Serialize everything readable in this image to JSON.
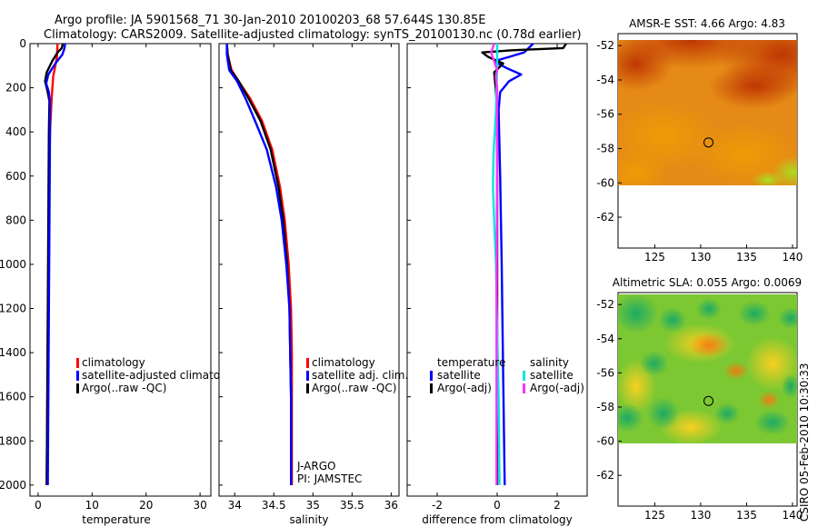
{
  "figure": {
    "title_line1": "Argo profile: JA 5901568_71 30-Jan-2010 20100203_68 57.644S 130.85E",
    "title_line2": "Climatology: CARS2009. Satellite-adjusted climatology: synTS_20100130.nc (0.78d earlier)",
    "side_label": "CSIRO 05-Feb-2010 10:30:33"
  },
  "colors": {
    "climatology": "#ff0000",
    "satellite": "#0000ff",
    "argo": "#000000",
    "satellite_diff": "#00e5e5",
    "argo_diff": "#ff33ff"
  },
  "chart_data": [
    {
      "id": "temperature",
      "type": "line",
      "xlabel": "temperature",
      "ylabel": "",
      "xlim": [
        -1.5,
        32
      ],
      "ylim": [
        2050,
        0
      ],
      "xticks": [
        "0",
        "10",
        "20",
        "30"
      ],
      "xtick_values": [
        0,
        10,
        20,
        30
      ],
      "yticks": [
        "0",
        "200",
        "400",
        "600",
        "800",
        "1000",
        "1200",
        "1400",
        "1600",
        "1800",
        "2000"
      ],
      "ytick_values": [
        0,
        200,
        400,
        600,
        800,
        1000,
        1200,
        1400,
        1600,
        1800,
        2000
      ],
      "legend": [
        "climatology",
        "satellite-adjusted climatolo",
        "Argo(..raw -QC)"
      ],
      "series": [
        {
          "name": "climatology",
          "color": "#ff0000",
          "x": [
            3.6,
            3.5,
            3.2,
            2.8,
            2.5,
            2.2,
            2.0,
            1.6
          ],
          "y": [
            0,
            60,
            100,
            150,
            250,
            400,
            700,
            2000
          ]
        },
        {
          "name": "Argo(..raw -QC)",
          "color": "#000000",
          "x": [
            4.6,
            4.4,
            3.6,
            2.6,
            1.6,
            1.3,
            1.7,
            2.1,
            2.0,
            1.9,
            1.8,
            1.7,
            1.6
          ],
          "y": [
            0,
            20,
            40,
            80,
            130,
            170,
            210,
            260,
            400,
            800,
            1200,
            1600,
            2000
          ]
        },
        {
          "name": "satellite-adjusted climatology",
          "color": "#0000ff",
          "x": [
            5.0,
            4.9,
            4.5,
            3.2,
            1.9,
            1.5,
            2.0,
            2.2,
            2.2,
            2.1,
            2.0,
            1.9,
            1.8
          ],
          "y": [
            0,
            20,
            50,
            90,
            140,
            180,
            220,
            270,
            400,
            800,
            1200,
            1600,
            2000
          ]
        }
      ]
    },
    {
      "id": "salinity",
      "type": "line",
      "xlabel": "salinity",
      "ylabel": "",
      "xlim": [
        33.8,
        36.1
      ],
      "ylim": [
        2050,
        0
      ],
      "xticks": [
        "34",
        "34.5",
        "35",
        "35.5",
        "36"
      ],
      "xtick_values": [
        34,
        34.5,
        35,
        35.5,
        36
      ],
      "legend": [
        "climatology",
        "satellite adj. clim.",
        "Argo(..raw -QC)"
      ],
      "annotation": [
        "J-ARGO",
        "PI: JAMSTEC"
      ],
      "series": [
        {
          "name": "climatology",
          "color": "#ff0000",
          "x": [
            33.9,
            33.91,
            33.96,
            34.05,
            34.2,
            34.35,
            34.48,
            34.58,
            34.64,
            34.69,
            34.72,
            34.73,
            34.73,
            34.73
          ],
          "y": [
            0,
            50,
            120,
            170,
            250,
            350,
            480,
            650,
            800,
            1000,
            1200,
            1400,
            1600,
            2000
          ]
        },
        {
          "name": "Argo(..raw -QC)",
          "color": "#000000",
          "x": [
            33.9,
            33.91,
            33.95,
            34.05,
            34.18,
            34.33,
            34.46,
            34.56,
            34.62,
            34.67,
            34.7,
            34.71,
            34.72,
            34.72
          ],
          "y": [
            0,
            50,
            120,
            170,
            250,
            350,
            480,
            650,
            800,
            1000,
            1200,
            1400,
            1600,
            2000
          ]
        },
        {
          "name": "satellite adj. clim.",
          "color": "#0000ff",
          "x": [
            33.9,
            33.9,
            33.93,
            34.03,
            34.14,
            34.26,
            34.41,
            34.53,
            34.6,
            34.66,
            34.7,
            34.71,
            34.72,
            34.72
          ],
          "y": [
            0,
            50,
            120,
            170,
            250,
            350,
            480,
            650,
            800,
            1000,
            1200,
            1400,
            1600,
            2000
          ]
        }
      ]
    },
    {
      "id": "difference",
      "type": "line",
      "xlabel": "difference from climatology",
      "ylabel": "",
      "xlim": [
        -3,
        3
      ],
      "ylim": [
        2050,
        0
      ],
      "xticks": [
        "-2",
        "0",
        "2"
      ],
      "xtick_values": [
        -2,
        0,
        2
      ],
      "legend_temperature_header": "temperature",
      "legend_salinity_header": "salinity",
      "legend_temperature": [
        "satellite",
        "Argo(-adj)"
      ],
      "legend_salinity": [
        "satellite",
        "Argo(-adj)"
      ],
      "series": [
        {
          "name": "temperature satellite",
          "color": "#0000ff",
          "x": [
            1.2,
            0.9,
            0.4,
            -0.1,
            0.3,
            0.8,
            0.4,
            0.1,
            0.05,
            0.1,
            0.15,
            0.2,
            0.25
          ],
          "y": [
            0,
            40,
            60,
            80,
            110,
            140,
            170,
            220,
            300,
            600,
            1000,
            1500,
            2000
          ]
        },
        {
          "name": "temperature Argo(-adj)",
          "color": "#000000",
          "x": [
            2.3,
            2.2,
            0.5,
            -0.5,
            -0.3,
            0.2,
            -0.1,
            -0.05,
            0.0,
            0.0,
            0.0,
            0.0
          ],
          "y": [
            0,
            20,
            30,
            40,
            60,
            90,
            130,
            200,
            300,
            800,
            1400,
            2000
          ]
        },
        {
          "name": "salinity satellite",
          "color": "#00e5e5",
          "x": [
            0.0,
            0.0,
            -0.02,
            -0.04,
            -0.08,
            -0.12,
            -0.14,
            -0.1,
            -0.04,
            0.0,
            0.05,
            0.08
          ],
          "y": [
            0,
            100,
            200,
            300,
            400,
            500,
            650,
            800,
            1000,
            1300,
            1600,
            2000
          ]
        },
        {
          "name": "salinity Argo(-adj)",
          "color": "#ff33ff",
          "x": [
            -0.1,
            -0.2,
            -0.1,
            0.0,
            -0.05,
            0.0,
            0.0,
            -0.02,
            -0.02
          ],
          "y": [
            0,
            40,
            80,
            120,
            150,
            200,
            500,
            1200,
            2000
          ]
        }
      ]
    },
    {
      "id": "sst_map",
      "type": "heatmap",
      "title": "AMSR-E SST: 4.66 Argo: 4.83",
      "xlim": [
        121,
        140.5
      ],
      "ylim": [
        -63.8,
        -51.3
      ],
      "xticks": [
        "125",
        "130",
        "135",
        "140"
      ],
      "xtick_values": [
        125,
        130,
        135,
        140
      ],
      "yticks": [
        "-52",
        "-54",
        "-56",
        "-58",
        "-60",
        "-62"
      ],
      "ytick_values": [
        -52,
        -54,
        -56,
        -58,
        -60,
        -62
      ],
      "data_extent_lat": [
        -60.1,
        -51.3
      ],
      "argo_position": {
        "lon": 130.85,
        "lat": -57.644
      }
    },
    {
      "id": "sla_map",
      "type": "heatmap",
      "title": "Altimetric SLA: 0.055 Argo: 0.0069",
      "xlim": [
        121,
        140.5
      ],
      "ylim": [
        -63.8,
        -51.3
      ],
      "xticks": [
        "125",
        "130",
        "135",
        "140"
      ],
      "xtick_values": [
        125,
        130,
        135,
        140
      ],
      "yticks": [
        "-52",
        "-54",
        "-56",
        "-58",
        "-60",
        "-62"
      ],
      "ytick_values": [
        -52,
        -54,
        -56,
        -58,
        -60,
        -62
      ],
      "data_extent_lat": [
        -60.1,
        -51.3
      ],
      "argo_position": {
        "lon": 130.85,
        "lat": -57.644
      }
    }
  ]
}
